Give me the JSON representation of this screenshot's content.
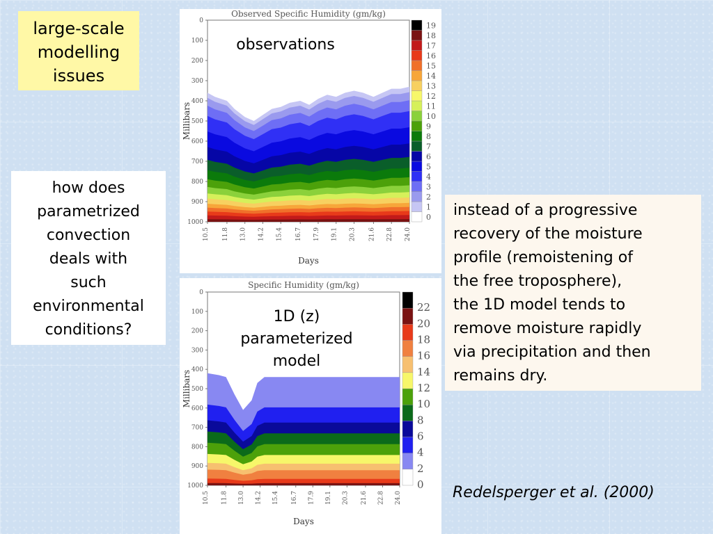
{
  "label_box": {
    "lines": [
      "large-scale",
      "modelling",
      "issues"
    ]
  },
  "question_box": {
    "lines": [
      "how does",
      "parametrized",
      "convection",
      "deals with",
      "such",
      "environmental",
      "conditions?"
    ]
  },
  "note_box": {
    "lines": [
      "instead of a progressive",
      "recovery of the moisture",
      "profile (remoistening of",
      "the free troposphere),",
      "the 1D model tends to",
      "remove moisture rapidly",
      "via precipitation and then",
      "remains dry."
    ]
  },
  "citation": {
    "text": "Redelsperger et al. (2000)"
  },
  "chart_data": [
    {
      "type": "heatmap",
      "title": "Observed Specific Humidity (gm/kg)",
      "caption": "observations",
      "xlabel": "Days",
      "ylabel": "Millibars",
      "x_ticks": [
        "10.5",
        "11.8",
        "13.0",
        "14.2",
        "15.4",
        "16.7",
        "17.9",
        "19.1",
        "20.3",
        "21.6",
        "22.8",
        "24.0"
      ],
      "y_ticks": [
        "0",
        "100",
        "200",
        "300",
        "400",
        "500",
        "600",
        "700",
        "800",
        "900",
        "1000"
      ],
      "ylim": [
        0,
        1000
      ],
      "xlim": [
        10.5,
        24.0
      ],
      "colorbar_levels": [
        "0",
        "1",
        "2",
        "3",
        "4",
        "5",
        "6",
        "7",
        "8",
        "9",
        "10",
        "11",
        "12",
        "13",
        "14",
        "15",
        "16",
        "17",
        "18",
        "19"
      ],
      "colorbar_colors": [
        "#ffffff",
        "#c6c6f4",
        "#9a9aee",
        "#6e6ef5",
        "#3030f5",
        "#0a0ae0",
        "#0606a6",
        "#0a5e2a",
        "#0b7a0b",
        "#4ca10a",
        "#8bd13b",
        "#d6f05a",
        "#f7f76a",
        "#f7d060",
        "#f7a63a",
        "#f0702a",
        "#e83a1a",
        "#c21a1a",
        "#7a1212",
        "#000000"
      ],
      "moisture_top_mb": [
        {
          "day": 10.5,
          "mb": 360
        },
        {
          "day": 11.0,
          "mb": 380
        },
        {
          "day": 11.8,
          "mb": 400
        },
        {
          "day": 12.3,
          "mb": 440
        },
        {
          "day": 13.0,
          "mb": 480
        },
        {
          "day": 13.6,
          "mb": 500
        },
        {
          "day": 14.2,
          "mb": 470
        },
        {
          "day": 14.8,
          "mb": 440
        },
        {
          "day": 15.4,
          "mb": 430
        },
        {
          "day": 16.0,
          "mb": 410
        },
        {
          "day": 16.7,
          "mb": 400
        },
        {
          "day": 17.3,
          "mb": 420
        },
        {
          "day": 17.9,
          "mb": 390
        },
        {
          "day": 18.5,
          "mb": 370
        },
        {
          "day": 19.1,
          "mb": 380
        },
        {
          "day": 19.7,
          "mb": 360
        },
        {
          "day": 20.3,
          "mb": 350
        },
        {
          "day": 20.9,
          "mb": 360
        },
        {
          "day": 21.6,
          "mb": 380
        },
        {
          "day": 22.2,
          "mb": 360
        },
        {
          "day": 22.8,
          "mb": 340
        },
        {
          "day": 23.4,
          "mb": 340
        },
        {
          "day": 24.0,
          "mb": 330
        }
      ]
    },
    {
      "type": "heatmap",
      "title": "Specific Humidity (gm/kg)",
      "caption_lines": [
        "1D (z)",
        "parameterized",
        "model"
      ],
      "xlabel": "Days",
      "ylabel": "Millibars",
      "x_ticks": [
        "10.5",
        "11.8",
        "13.0",
        "14.2",
        "15.4",
        "16.7",
        "17.9",
        "19.1",
        "20.3",
        "21.6",
        "22.8",
        "24.0"
      ],
      "y_ticks": [
        "0",
        "100",
        "200",
        "300",
        "400",
        "500",
        "600",
        "700",
        "800",
        "900",
        "1000"
      ],
      "ylim": [
        0,
        1000
      ],
      "xlim": [
        10.5,
        24.0
      ],
      "colorbar_levels": [
        "0",
        "2",
        "4",
        "6",
        "8",
        "10",
        "12",
        "14",
        "16",
        "18",
        "20",
        "22"
      ],
      "colorbar_colors": [
        "#ffffff",
        "#8888f2",
        "#2020f0",
        "#0a0a9a",
        "#0b6a1a",
        "#4ca10a",
        "#f7f76a",
        "#f7c070",
        "#f08040",
        "#e83a1a",
        "#7a1212",
        "#000000"
      ],
      "moisture_top_mb": [
        {
          "day": 10.5,
          "mb": 420
        },
        {
          "day": 11.3,
          "mb": 430
        },
        {
          "day": 11.8,
          "mb": 440
        },
        {
          "day": 12.4,
          "mb": 530
        },
        {
          "day": 13.0,
          "mb": 610
        },
        {
          "day": 13.6,
          "mb": 560
        },
        {
          "day": 14.0,
          "mb": 470
        },
        {
          "day": 14.5,
          "mb": 440
        },
        {
          "day": 15.4,
          "mb": 440
        },
        {
          "day": 16.7,
          "mb": 440
        },
        {
          "day": 17.9,
          "mb": 440
        },
        {
          "day": 19.1,
          "mb": 440
        },
        {
          "day": 20.3,
          "mb": 440
        },
        {
          "day": 21.0,
          "mb": 440
        },
        {
          "day": 21.6,
          "mb": 440
        },
        {
          "day": 22.8,
          "mb": 440
        },
        {
          "day": 24.0,
          "mb": 440
        }
      ]
    }
  ]
}
